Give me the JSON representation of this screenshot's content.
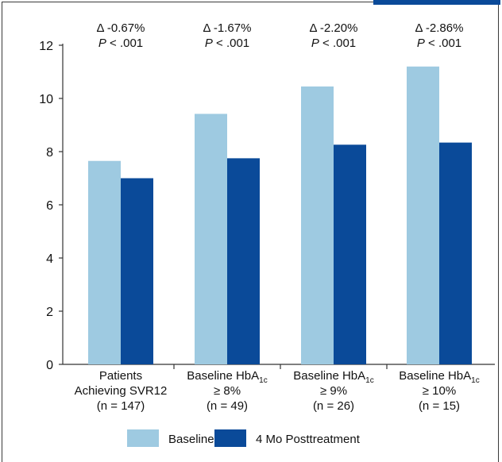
{
  "chart_data": {
    "type": "bar",
    "categories": [
      {
        "lines": [
          "Patients",
          "Achieving SVR12",
          "(n = 147)"
        ]
      },
      {
        "lines": [
          "Baseline HbA",
          "≥ 8%",
          "(n = 49)"
        ],
        "sub": "1c"
      },
      {
        "lines": [
          "Baseline HbA",
          "≥ 9%",
          "(n = 26)"
        ],
        "sub": "1c"
      },
      {
        "lines": [
          "Baseline HbA",
          "≥ 10%",
          "(n = 15)"
        ],
        "sub": "1c"
      }
    ],
    "series": [
      {
        "name": "Baseline",
        "color": "#9ecae1",
        "values": [
          7.65,
          9.42,
          10.45,
          11.2
        ]
      },
      {
        "name": "4 Mo Posttreatment",
        "color": "#0a4a99",
        "values": [
          7.0,
          7.75,
          8.26,
          8.34
        ]
      }
    ],
    "annotations": [
      {
        "delta": "Δ -0.67%",
        "p_italic": "P",
        "p_rest": " < .001"
      },
      {
        "delta": "Δ -1.67%",
        "p_italic": "P",
        "p_rest": " < .001"
      },
      {
        "delta": "Δ -2.20%",
        "p_italic": "P",
        "p_rest": " < .001"
      },
      {
        "delta": "Δ -2.86%",
        "p_italic": "P",
        "p_rest": " < .001"
      }
    ],
    "yticks": [
      "0",
      "2",
      "4",
      "6",
      "8",
      "10",
      "12"
    ],
    "ylim": [
      0,
      12
    ],
    "legend_position": "bottom",
    "grid": false
  }
}
